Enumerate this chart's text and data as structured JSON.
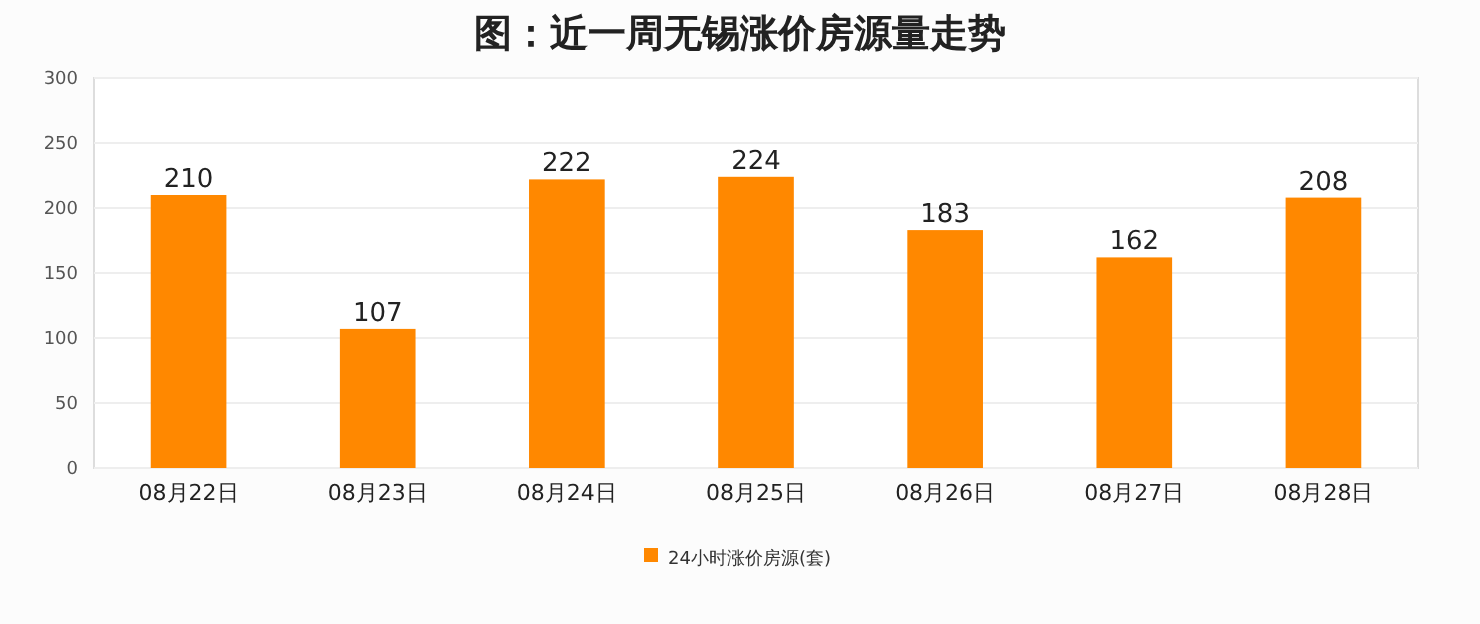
{
  "chart_data": {
    "type": "bar",
    "title": "图：近一周无锡涨价房源量走势",
    "categories": [
      "08月22日",
      "08月23日",
      "08月24日",
      "08月25日",
      "08月26日",
      "08月27日",
      "08月28日"
    ],
    "series": [
      {
        "name": "24小时涨价房源(套)",
        "color": "#ff8800",
        "values": [
          210,
          107,
          222,
          224,
          183,
          162,
          208
        ]
      }
    ],
    "ylim": [
      0,
      300
    ],
    "yticks": [
      0,
      50,
      100,
      150,
      200,
      250,
      300
    ],
    "grid": "y",
    "legend": "bottom",
    "data_labels": true
  }
}
